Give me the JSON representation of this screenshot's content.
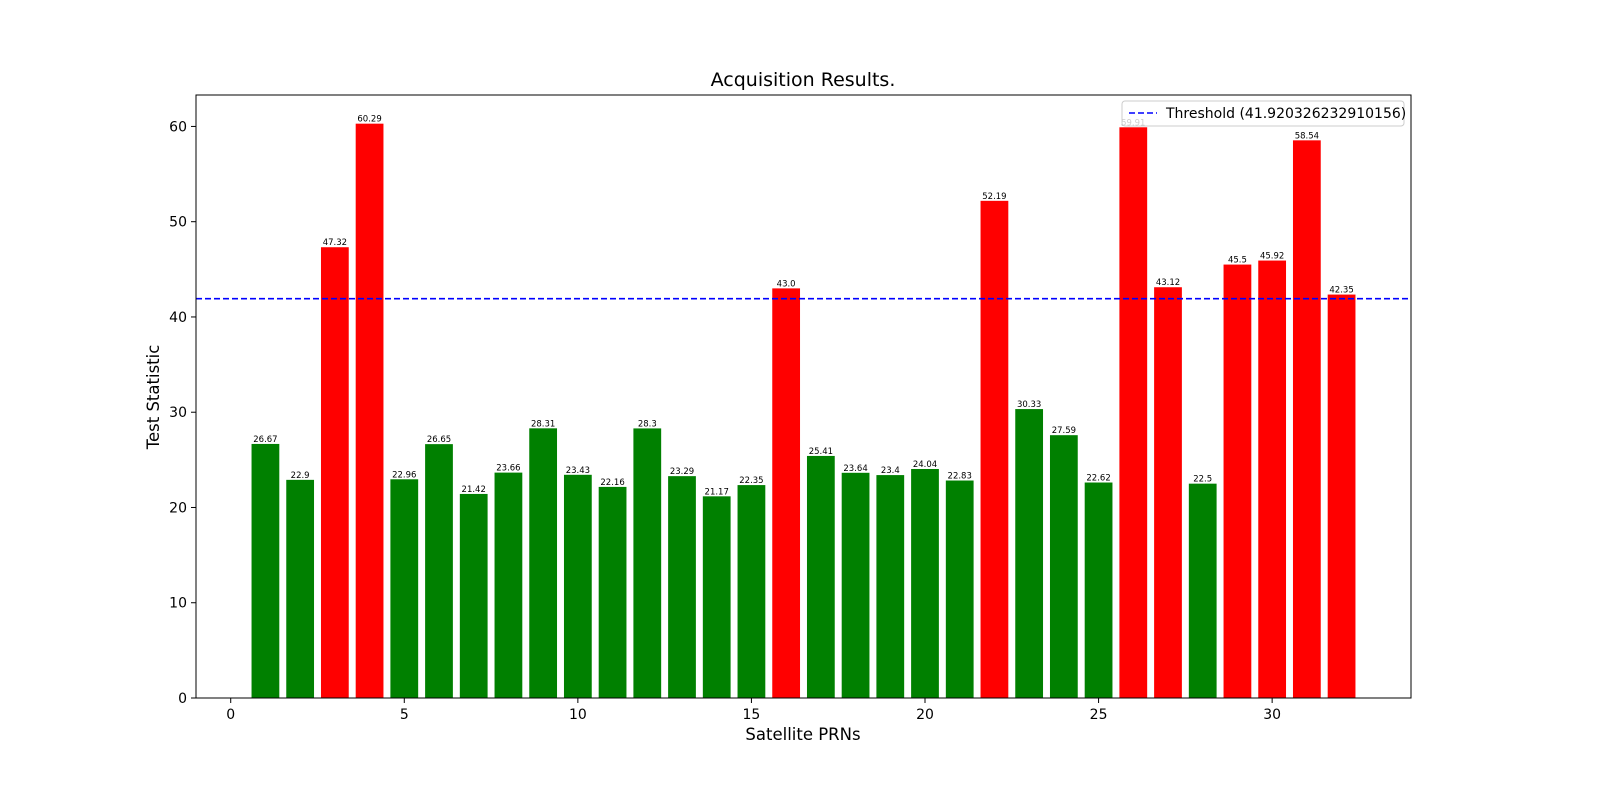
{
  "chart_data": {
    "type": "bar",
    "title": "Acquisition Results.",
    "xlabel": "Satellite PRNs",
    "ylabel": "Test Statistic",
    "xlim": [
      -1,
      34
    ],
    "ylim": [
      0,
      63.3
    ],
    "xticks": [
      0,
      5,
      10,
      15,
      20,
      25,
      30
    ],
    "yticks": [
      0,
      10,
      20,
      30,
      40,
      50,
      60
    ],
    "x": [
      1,
      2,
      3,
      4,
      5,
      6,
      7,
      8,
      9,
      10,
      11,
      12,
      13,
      14,
      15,
      16,
      17,
      18,
      19,
      20,
      21,
      22,
      23,
      24,
      25,
      26,
      27,
      28,
      29,
      30,
      31,
      32
    ],
    "values": [
      26.67,
      22.9,
      47.32,
      60.29,
      22.96,
      26.65,
      21.42,
      23.66,
      28.31,
      23.43,
      22.16,
      28.3,
      23.29,
      21.17,
      22.35,
      43.0,
      25.41,
      23.64,
      23.4,
      24.04,
      22.83,
      52.19,
      30.33,
      27.59,
      22.62,
      59.91,
      43.12,
      22.5,
      45.5,
      45.92,
      58.54,
      42.35
    ],
    "value_labels": [
      "26.67",
      "22.9",
      "47.32",
      "60.29",
      "22.96",
      "26.65",
      "21.42",
      "23.66",
      "28.31",
      "23.43",
      "22.16",
      "28.3",
      "23.29",
      "21.17",
      "22.35",
      "43.0",
      "25.41",
      "23.64",
      "23.4",
      "24.04",
      "22.83",
      "52.19",
      "30.33",
      "27.59",
      "22.62",
      "59.91",
      "43.12",
      "22.5",
      "45.5",
      "45.92",
      "58.54",
      "42.35"
    ],
    "threshold": 41.920326232910156,
    "legend": {
      "position": "top-right",
      "entries": [
        {
          "label": "Threshold (41.920326232910156)",
          "style": "dashed",
          "color": "#0000ff"
        }
      ]
    },
    "colors": {
      "above": "#ff0000",
      "below": "#008000",
      "threshold": "#0000ff"
    },
    "grid": false
  }
}
